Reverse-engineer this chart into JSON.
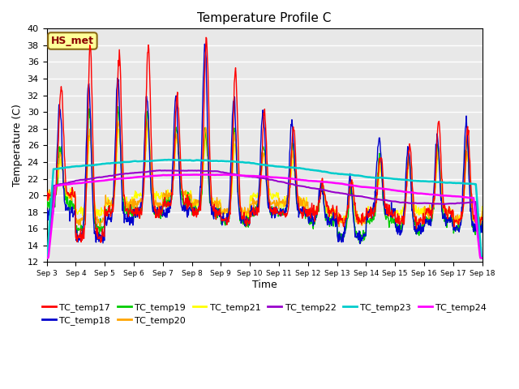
{
  "title": "Temperature Profile C",
  "xlabel": "Time",
  "ylabel": "Temperature (C)",
  "ylim": [
    12,
    40
  ],
  "yticks": [
    12,
    14,
    16,
    18,
    20,
    22,
    24,
    26,
    28,
    30,
    32,
    34,
    36,
    38,
    40
  ],
  "annotation": "HS_met",
  "annotation_color": "#8B0000",
  "annotation_bg": "#FFFF99",
  "annotation_border": "#8B6914",
  "bg_color": "#E8E8E8",
  "series_colors": {
    "TC_temp17": "#FF0000",
    "TC_temp18": "#0000CC",
    "TC_temp19": "#00CC00",
    "TC_temp20": "#FFA500",
    "TC_temp21": "#FFFF00",
    "TC_temp22": "#9900CC",
    "TC_temp23": "#00CCCC",
    "TC_temp24": "#FF00FF"
  },
  "x_tick_labels": [
    "Sep 3",
    "Sep 4",
    "Sep 5",
    "Sep 6",
    "Sep 7",
    "Sep 8",
    "Sep 9",
    "Sep 10",
    "Sep 11",
    "Sep 12",
    "Sep 13",
    "Sep 14",
    "Sep 15",
    "Sep 16",
    "Sep 17",
    "Sep 18"
  ],
  "n_points": 960
}
